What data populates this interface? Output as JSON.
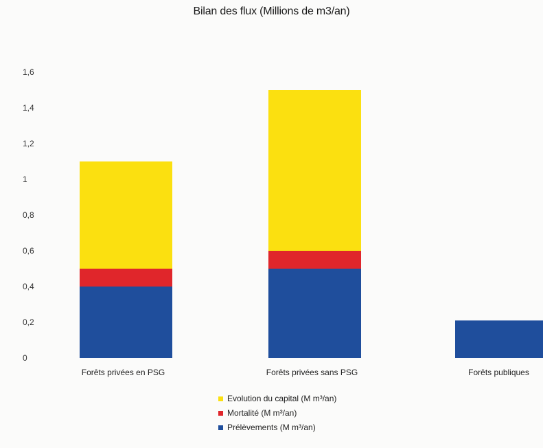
{
  "chart_data": {
    "type": "bar",
    "stacked": true,
    "title": "Bilan des flux (Millions de m3/an)",
    "categories": [
      "Forêts privées en PSG",
      "Forêts privées sans PSG",
      "Forêts publiques"
    ],
    "series": [
      {
        "name": "Prélèvements (M m³/an)",
        "color": "#1f4e9c",
        "values": [
          0.4,
          0.5,
          0.21
        ]
      },
      {
        "name": "Mortalité (M m³/an)",
        "color": "#e0262b",
        "values": [
          0.1,
          0.1,
          0
        ]
      },
      {
        "name": "Evolution du capital (M m³/an)",
        "color": "#fbe010",
        "values": [
          0.6,
          0.9,
          0
        ]
      }
    ],
    "y_ticks": [
      "0",
      "0,2",
      "0,4",
      "0,6",
      "0,8",
      "1",
      "1,2",
      "1,4",
      "1,6"
    ],
    "ylim": [
      0,
      1.6
    ],
    "grid": false,
    "legend_position": "bottom"
  },
  "legend_order": [
    2,
    1,
    0
  ]
}
